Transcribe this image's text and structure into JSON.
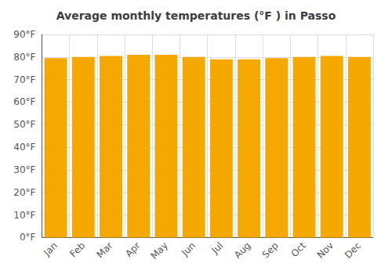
{
  "chart_data": {
    "type": "bar",
    "title": "Average monthly temperatures (°F ) in Passo",
    "categories": [
      "Jan",
      "Feb",
      "Mar",
      "Apr",
      "May",
      "Jun",
      "Jul",
      "Aug",
      "Sep",
      "Oct",
      "Nov",
      "Dec"
    ],
    "values": [
      79.5,
      80.0,
      80.5,
      81.0,
      81.0,
      80.0,
      79.0,
      79.0,
      79.5,
      80.0,
      80.5,
      80.0
    ],
    "color": "#F5A800",
    "ylim": [
      0,
      90
    ],
    "yticks": [
      {
        "value": 0,
        "label": "0°F"
      },
      {
        "value": 10,
        "label": "10°F"
      },
      {
        "value": 20,
        "label": "20°F"
      },
      {
        "value": 30,
        "label": "30°F"
      },
      {
        "value": 40,
        "label": "40°F"
      },
      {
        "value": 50,
        "label": "50°F"
      },
      {
        "value": 60,
        "label": "60°F"
      },
      {
        "value": 70,
        "label": "70°F"
      },
      {
        "value": 80,
        "label": "80°F"
      },
      {
        "value": 90,
        "label": "90°F"
      }
    ],
    "grid": true
  }
}
